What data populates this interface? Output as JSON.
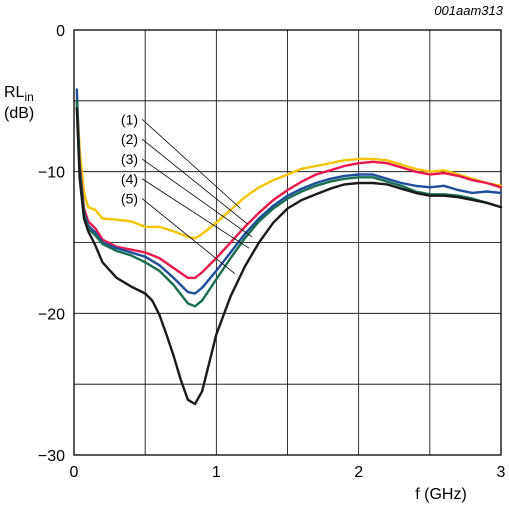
{
  "figure_id": "001aam313",
  "chart_data": {
    "type": "line",
    "title": "",
    "xlabel": "f (GHz)",
    "ylabel": "RL",
    "ylabel_sub": "in",
    "ylabel_unit": "(dB)",
    "xlim": [
      0,
      3
    ],
    "ylim": [
      -30,
      0
    ],
    "x_ticks": [
      0,
      1,
      2,
      3
    ],
    "x_tick_labels": [
      "0",
      "1",
      "2",
      "3"
    ],
    "y_ticks": [
      -30,
      -20,
      -10,
      0
    ],
    "y_tick_labels": [
      "−30",
      "−20",
      "−10",
      "0"
    ],
    "grid": true,
    "grid_x": [
      0.5,
      1,
      1.5,
      2,
      2.5
    ],
    "grid_y": [
      -25,
      -20,
      -15,
      -10,
      -5
    ],
    "annotations": [
      {
        "label": "(1)",
        "text_at": [
          0.45,
          -6.3
        ],
        "point": [
          1.17,
          -12.6
        ]
      },
      {
        "label": "(2)",
        "text_at": [
          0.45,
          -7.7
        ],
        "point": [
          1.22,
          -13.7
        ]
      },
      {
        "label": "(3)",
        "text_at": [
          0.45,
          -9.1
        ],
        "point": [
          1.25,
          -14.6
        ]
      },
      {
        "label": "(4)",
        "text_at": [
          0.45,
          -10.5
        ],
        "point": [
          1.23,
          -15.4
        ]
      },
      {
        "label": "(5)",
        "text_at": [
          0.45,
          -11.9
        ],
        "point": [
          1.13,
          -17.2
        ]
      }
    ],
    "series": [
      {
        "id": "1",
        "color": "#f5c400",
        "x": [
          0.02,
          0.04,
          0.07,
          0.1,
          0.15,
          0.2,
          0.3,
          0.4,
          0.5,
          0.6,
          0.7,
          0.8,
          0.85,
          0.9,
          1.0,
          1.1,
          1.2,
          1.3,
          1.4,
          1.5,
          1.6,
          1.7,
          1.8,
          1.9,
          2.0,
          2.1,
          2.2,
          2.3,
          2.4,
          2.5,
          2.6,
          2.7,
          2.8,
          2.9,
          3.0
        ],
        "y": [
          -4.8,
          -8.5,
          -11.5,
          -12.5,
          -12.7,
          -13.3,
          -13.4,
          -13.5,
          -13.9,
          -13.9,
          -14.2,
          -14.6,
          -14.7,
          -14.4,
          -13.6,
          -12.7,
          -11.8,
          -11.1,
          -10.6,
          -10.2,
          -9.8,
          -9.6,
          -9.4,
          -9.2,
          -9.1,
          -9.1,
          -9.2,
          -9.5,
          -9.8,
          -10.0,
          -9.9,
          -10.2,
          -10.5,
          -10.8,
          -11.0
        ]
      },
      {
        "id": "2",
        "color": "#e8184c",
        "x": [
          0.02,
          0.04,
          0.07,
          0.1,
          0.15,
          0.2,
          0.3,
          0.4,
          0.5,
          0.6,
          0.7,
          0.8,
          0.85,
          0.9,
          1.0,
          1.1,
          1.2,
          1.3,
          1.4,
          1.5,
          1.6,
          1.7,
          1.8,
          1.9,
          2.0,
          2.1,
          2.2,
          2.3,
          2.4,
          2.5,
          2.6,
          2.7,
          2.8,
          2.9,
          3.0
        ],
        "y": [
          -5.0,
          -9.5,
          -12.6,
          -13.5,
          -14.0,
          -14.8,
          -15.3,
          -15.5,
          -15.7,
          -16.1,
          -16.8,
          -17.5,
          -17.5,
          -17.1,
          -16.1,
          -15.0,
          -13.9,
          -12.9,
          -12.0,
          -11.3,
          -10.7,
          -10.2,
          -9.9,
          -9.6,
          -9.4,
          -9.3,
          -9.4,
          -9.7,
          -10.0,
          -10.2,
          -10.1,
          -10.3,
          -10.6,
          -10.8,
          -11.1
        ]
      },
      {
        "id": "3",
        "color": "#1f4e9c",
        "x": [
          0.02,
          0.04,
          0.07,
          0.1,
          0.15,
          0.2,
          0.3,
          0.4,
          0.5,
          0.6,
          0.7,
          0.8,
          0.85,
          0.9,
          1.0,
          1.1,
          1.2,
          1.3,
          1.4,
          1.5,
          1.6,
          1.7,
          1.8,
          1.9,
          2.0,
          2.1,
          2.2,
          2.3,
          2.4,
          2.5,
          2.6,
          2.7,
          2.8,
          2.9,
          3.0
        ],
        "y": [
          -4.2,
          -9.8,
          -12.9,
          -13.8,
          -14.3,
          -15.0,
          -15.4,
          -15.7,
          -16.0,
          -16.6,
          -17.5,
          -18.5,
          -18.6,
          -18.2,
          -17.0,
          -15.7,
          -14.4,
          -13.3,
          -12.4,
          -11.7,
          -11.2,
          -10.8,
          -10.5,
          -10.3,
          -10.2,
          -10.2,
          -10.5,
          -10.8,
          -11.0,
          -11.1,
          -11.0,
          -11.3,
          -11.5,
          -11.4,
          -11.5
        ]
      },
      {
        "id": "4",
        "color": "#1a6e50",
        "x": [
          0.02,
          0.04,
          0.07,
          0.1,
          0.15,
          0.2,
          0.3,
          0.4,
          0.5,
          0.6,
          0.7,
          0.8,
          0.85,
          0.9,
          1.0,
          1.1,
          1.2,
          1.3,
          1.4,
          1.5,
          1.6,
          1.7,
          1.8,
          1.9,
          2.0,
          2.1,
          2.2,
          2.3,
          2.4,
          2.5,
          2.6,
          2.7,
          2.8,
          2.9,
          3.0
        ],
        "y": [
          -5.0,
          -10.0,
          -13.1,
          -14.0,
          -14.5,
          -15.1,
          -15.6,
          -15.9,
          -16.4,
          -17.0,
          -18.0,
          -19.3,
          -19.5,
          -19.1,
          -17.6,
          -16.1,
          -14.7,
          -13.5,
          -12.6,
          -11.9,
          -11.4,
          -11.0,
          -10.7,
          -10.5,
          -10.4,
          -10.4,
          -10.7,
          -11.0,
          -11.4,
          -11.6,
          -11.6,
          -11.7,
          -11.9,
          -12.2,
          -12.5
        ]
      },
      {
        "id": "5",
        "color": "#1a1a1a",
        "x": [
          0.02,
          0.04,
          0.07,
          0.1,
          0.15,
          0.2,
          0.3,
          0.4,
          0.5,
          0.55,
          0.6,
          0.65,
          0.7,
          0.75,
          0.8,
          0.85,
          0.9,
          0.95,
          1.0,
          1.1,
          1.2,
          1.3,
          1.4,
          1.5,
          1.6,
          1.7,
          1.8,
          1.9,
          2.0,
          2.1,
          2.2,
          2.3,
          2.4,
          2.5,
          2.6,
          2.7,
          2.8,
          2.9,
          3.0
        ],
        "y": [
          -5.5,
          -10.5,
          -13.3,
          -14.2,
          -15.2,
          -16.4,
          -17.5,
          -18.1,
          -18.6,
          -19.1,
          -20.1,
          -21.5,
          -23.0,
          -24.7,
          -26.1,
          -26.4,
          -25.5,
          -23.5,
          -21.5,
          -18.8,
          -16.7,
          -15.0,
          -13.6,
          -12.6,
          -12.0,
          -11.6,
          -11.2,
          -10.9,
          -10.8,
          -10.8,
          -10.9,
          -11.2,
          -11.5,
          -11.7,
          -11.7,
          -11.8,
          -12.0,
          -12.2,
          -12.5
        ]
      }
    ]
  }
}
